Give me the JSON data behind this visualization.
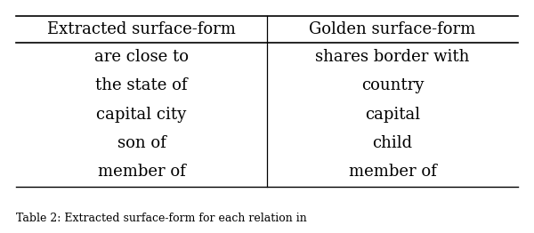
{
  "headers": [
    "Extracted surface-form",
    "Golden surface-form"
  ],
  "rows": [
    [
      "are close to",
      "shares border with"
    ],
    [
      "the state of",
      "country"
    ],
    [
      "capital city",
      "capital"
    ],
    [
      "son of",
      "child"
    ],
    [
      "member of",
      "member of"
    ]
  ],
  "fig_width": 6.0,
  "fig_height": 2.62,
  "background_color": "#ffffff",
  "text_color": "#000000",
  "header_fontsize": 13,
  "cell_fontsize": 13,
  "caption": "Table 2: Extracted surface-form for each relation in",
  "caption_fontsize": 9
}
